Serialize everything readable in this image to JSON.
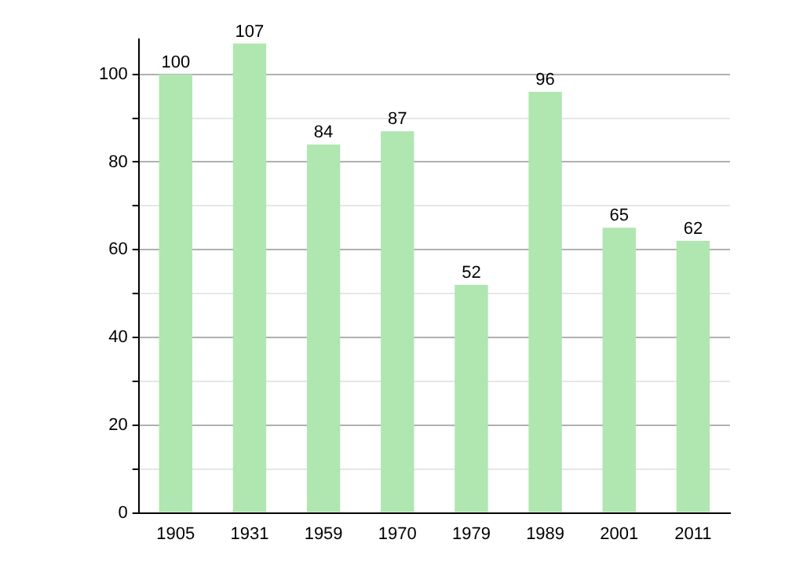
{
  "chart_data": {
    "type": "bar",
    "categories": [
      "1905",
      "1931",
      "1959",
      "1970",
      "1979",
      "1989",
      "2001",
      "2011"
    ],
    "values": [
      100,
      107,
      84,
      87,
      52,
      96,
      65,
      62
    ],
    "color": "#b0e6b0",
    "ylim": [
      0,
      108
    ],
    "yticks": [
      0,
      {
        "value": 10,
        "label": null
      },
      20,
      {
        "value": 30,
        "label": null
      },
      40,
      {
        "value": 50,
        "label": null
      },
      60,
      {
        "value": 70,
        "label": null
      },
      80,
      {
        "value": 90,
        "label": null
      },
      100
    ],
    "grid": "y",
    "data_labels": true,
    "legend": false
  }
}
